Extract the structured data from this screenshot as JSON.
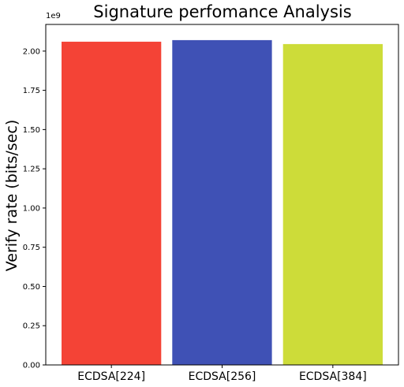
{
  "chart_data": {
    "type": "bar",
    "title": "Signature perfomance Analysis",
    "ylabel": "Verify rate (bits/sec)",
    "xlabel": "",
    "scale_offset_label": "1e9",
    "scale_factor": 1000000000,
    "categories": [
      "ECDSA[224]",
      "ECDSA[256]",
      "ECDSA[384]"
    ],
    "values": [
      2060000000,
      2070000000,
      2045000000
    ],
    "colors": [
      "#f44336",
      "#3f51b5",
      "#cddc39"
    ],
    "ylim": [
      0,
      2170000000
    ],
    "yticks": [
      "0.00",
      "0.25",
      "0.50",
      "0.75",
      "1.00",
      "1.25",
      "1.50",
      "1.75",
      "2.00"
    ],
    "grid": false,
    "legend": "none"
  }
}
